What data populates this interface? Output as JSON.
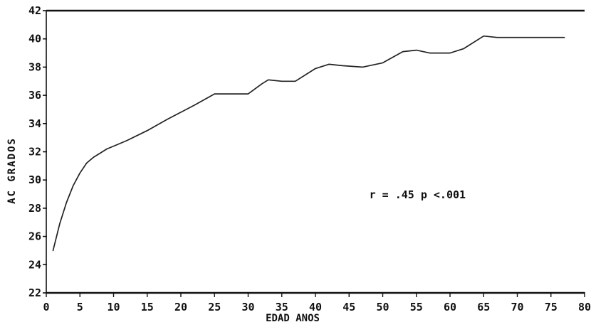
{
  "chart_data": {
    "type": "line",
    "title": "",
    "xlabel": "EDAD  ANOS",
    "ylabel": "AC  GRADOS",
    "xlim": [
      0,
      80
    ],
    "ylim": [
      22,
      42
    ],
    "xticks": [
      0,
      5,
      10,
      15,
      20,
      25,
      30,
      35,
      40,
      45,
      50,
      55,
      60,
      65,
      70,
      75,
      80
    ],
    "yticks": [
      22,
      24,
      26,
      28,
      30,
      32,
      34,
      36,
      38,
      40,
      42
    ],
    "grid": false,
    "legend": "none",
    "series": [
      {
        "x": [
          1,
          2,
          3,
          4,
          5,
          6,
          7,
          8,
          9,
          10,
          12,
          15,
          18,
          20,
          22,
          25,
          27,
          30,
          32,
          33,
          35,
          37,
          40,
          42,
          44,
          47,
          50,
          53,
          55,
          57,
          60,
          62,
          65,
          67,
          70,
          73,
          77
        ],
        "y": [
          25.0,
          26.9,
          28.4,
          29.6,
          30.5,
          31.2,
          31.6,
          31.9,
          32.2,
          32.4,
          32.8,
          33.5,
          34.3,
          34.8,
          35.3,
          36.1,
          36.1,
          36.1,
          36.8,
          37.1,
          37.0,
          37.0,
          37.9,
          38.2,
          38.1,
          38.0,
          38.3,
          39.1,
          39.2,
          39.0,
          39.0,
          39.3,
          40.2,
          40.1,
          40.1,
          40.1,
          40.1
        ],
        "color": "#222222"
      }
    ],
    "annotations": [
      {
        "text": "r = .45   p <.001",
        "x": 48,
        "y": 28.7
      }
    ]
  }
}
